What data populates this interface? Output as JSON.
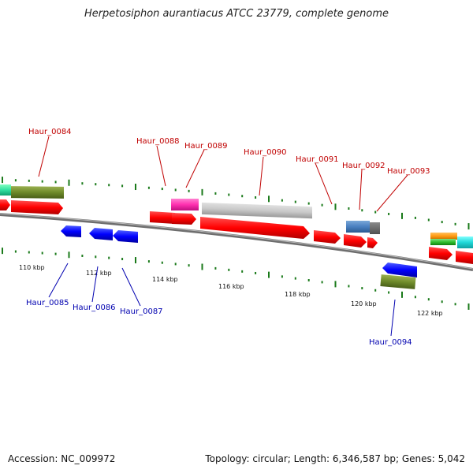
{
  "title": "Herpetosiphon aurantiacus ATCC 23779, complete genome",
  "footer": {
    "accession": "Accession: NC_009972",
    "info": "Topology: circular; Length: 6,346,587 bp; Genes: 5,042"
  },
  "colors": {
    "forward_label": "#c00000",
    "reverse_label": "#0000b0",
    "gene_forward": "#ff0000",
    "gene_reverse": "#0000ff",
    "backbone": "#808080",
    "gc_tick": "#1a7a1a"
  },
  "scale_labels": [
    "110 kbp",
    "112 kbp",
    "114 kbp",
    "116 kbp",
    "118 kbp",
    "120 kbp",
    "122 kbp"
  ],
  "forward_labels": [
    "Haur_0084",
    "Haur_0088",
    "Haur_0089",
    "Haur_0090",
    "Haur_0091",
    "Haur_0092",
    "Haur_0093"
  ],
  "reverse_labels": [
    "Haur_0085",
    "Haur_0086",
    "Haur_0087",
    "Haur_0094"
  ]
}
